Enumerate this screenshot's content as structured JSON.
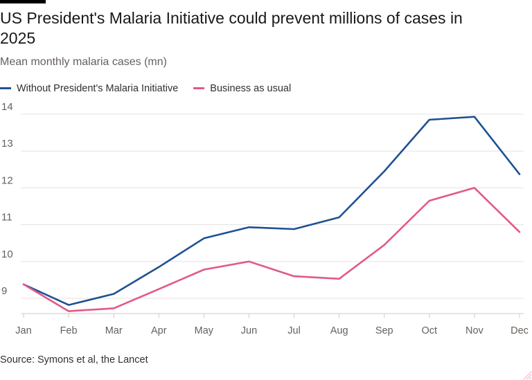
{
  "header": {
    "title": "US President's Malaria Initiative could prevent millions of cases in 2025",
    "subtitle": "Mean monthly malaria cases (mn)"
  },
  "footer": {
    "source": "Source: Symons et al, the Lancet"
  },
  "colors": {
    "series_without": "#1e5192",
    "series_bau": "#e3578b",
    "grid": "#e6e3e0",
    "axis": "#66605c"
  },
  "chart_data": {
    "type": "line",
    "title": "US President's Malaria Initiative could prevent millions of cases in 2025",
    "ylabel": "Mean monthly malaria cases (mn)",
    "xlabel": "",
    "categories": [
      "Jan",
      "Feb",
      "Mar",
      "Apr",
      "May",
      "Jun",
      "Jul",
      "Aug",
      "Sep",
      "Oct",
      "Nov",
      "Dec"
    ],
    "yticks": [
      9,
      10,
      11,
      12,
      13,
      14
    ],
    "ylim": [
      8.5,
      14.2
    ],
    "grid": true,
    "legend_position": "top-left",
    "series": [
      {
        "name": "Without President's Malaria Initiative",
        "values": [
          9.38,
          8.82,
          9.12,
          9.85,
          10.63,
          10.93,
          10.88,
          11.2,
          12.45,
          13.85,
          13.93,
          12.37
        ]
      },
      {
        "name": "Business as usual",
        "values": [
          9.38,
          8.65,
          8.73,
          9.25,
          9.78,
          10.0,
          9.6,
          9.53,
          10.45,
          11.65,
          12.0,
          10.8
        ]
      }
    ]
  }
}
